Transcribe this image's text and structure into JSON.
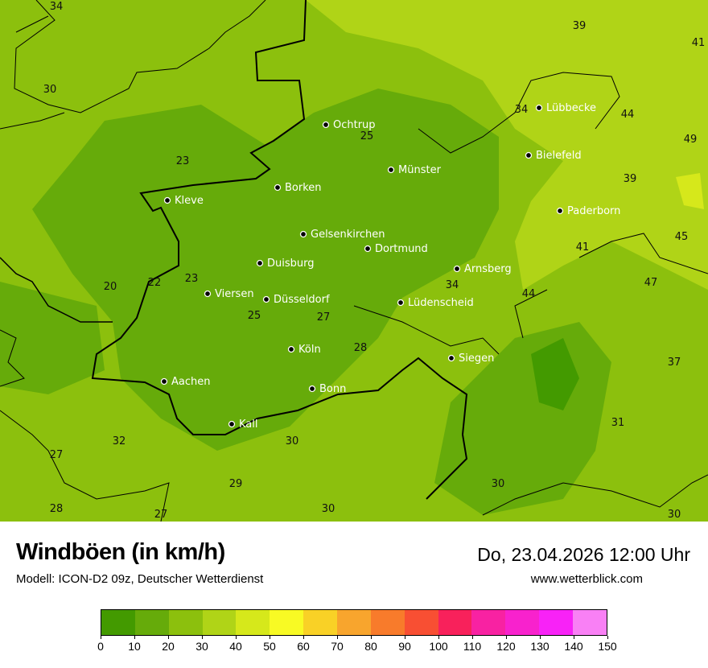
{
  "title": "Windböen (in km/h)",
  "subtitle": "Modell: ICON-D2 09z, Deutscher Wetterdienst",
  "datetime": "Do, 23.04.2026 12:00 Uhr",
  "website": "www.wetterblick.com",
  "legend": {
    "ticks": [
      "0",
      "10",
      "20",
      "30",
      "40",
      "50",
      "60",
      "70",
      "80",
      "90",
      "100",
      "110",
      "120",
      "130",
      "140",
      "150"
    ],
    "colors": [
      "#439a00",
      "#66ab0a",
      "#8cc00d",
      "#b0d417",
      "#d6e81b",
      "#f8fa24",
      "#f9d126",
      "#f8a52d",
      "#f87b2b",
      "#f84f33",
      "#f8215b",
      "#f822a2",
      "#f822cd",
      "#f822f7",
      "#f980f5"
    ]
  },
  "cities": [
    {
      "name": "Ochtrup"
    },
    {
      "name": "Münster"
    },
    {
      "name": "Lübbecke"
    },
    {
      "name": "Bielefeld"
    },
    {
      "name": "Paderborn"
    },
    {
      "name": "Borken"
    },
    {
      "name": "Kleve"
    },
    {
      "name": "Gelsenkirchen"
    },
    {
      "name": "Dortmund"
    },
    {
      "name": "Duisburg"
    },
    {
      "name": "Arnsberg"
    },
    {
      "name": "Viersen"
    },
    {
      "name": "Düsseldorf"
    },
    {
      "name": "Lüdenscheid"
    },
    {
      "name": "Köln"
    },
    {
      "name": "Siegen"
    },
    {
      "name": "Aachen"
    },
    {
      "name": "Bonn"
    },
    {
      "name": "Kall"
    }
  ],
  "values": [
    "34",
    "39",
    "41",
    "30",
    "34",
    "44",
    "25",
    "49",
    "23",
    "39",
    "45",
    "41",
    "20",
    "22",
    "23",
    "47",
    "25",
    "27",
    "34",
    "44",
    "28",
    "37",
    "31",
    "32",
    "30",
    "27",
    "29",
    "30",
    "28",
    "27",
    "30",
    "30"
  ]
}
